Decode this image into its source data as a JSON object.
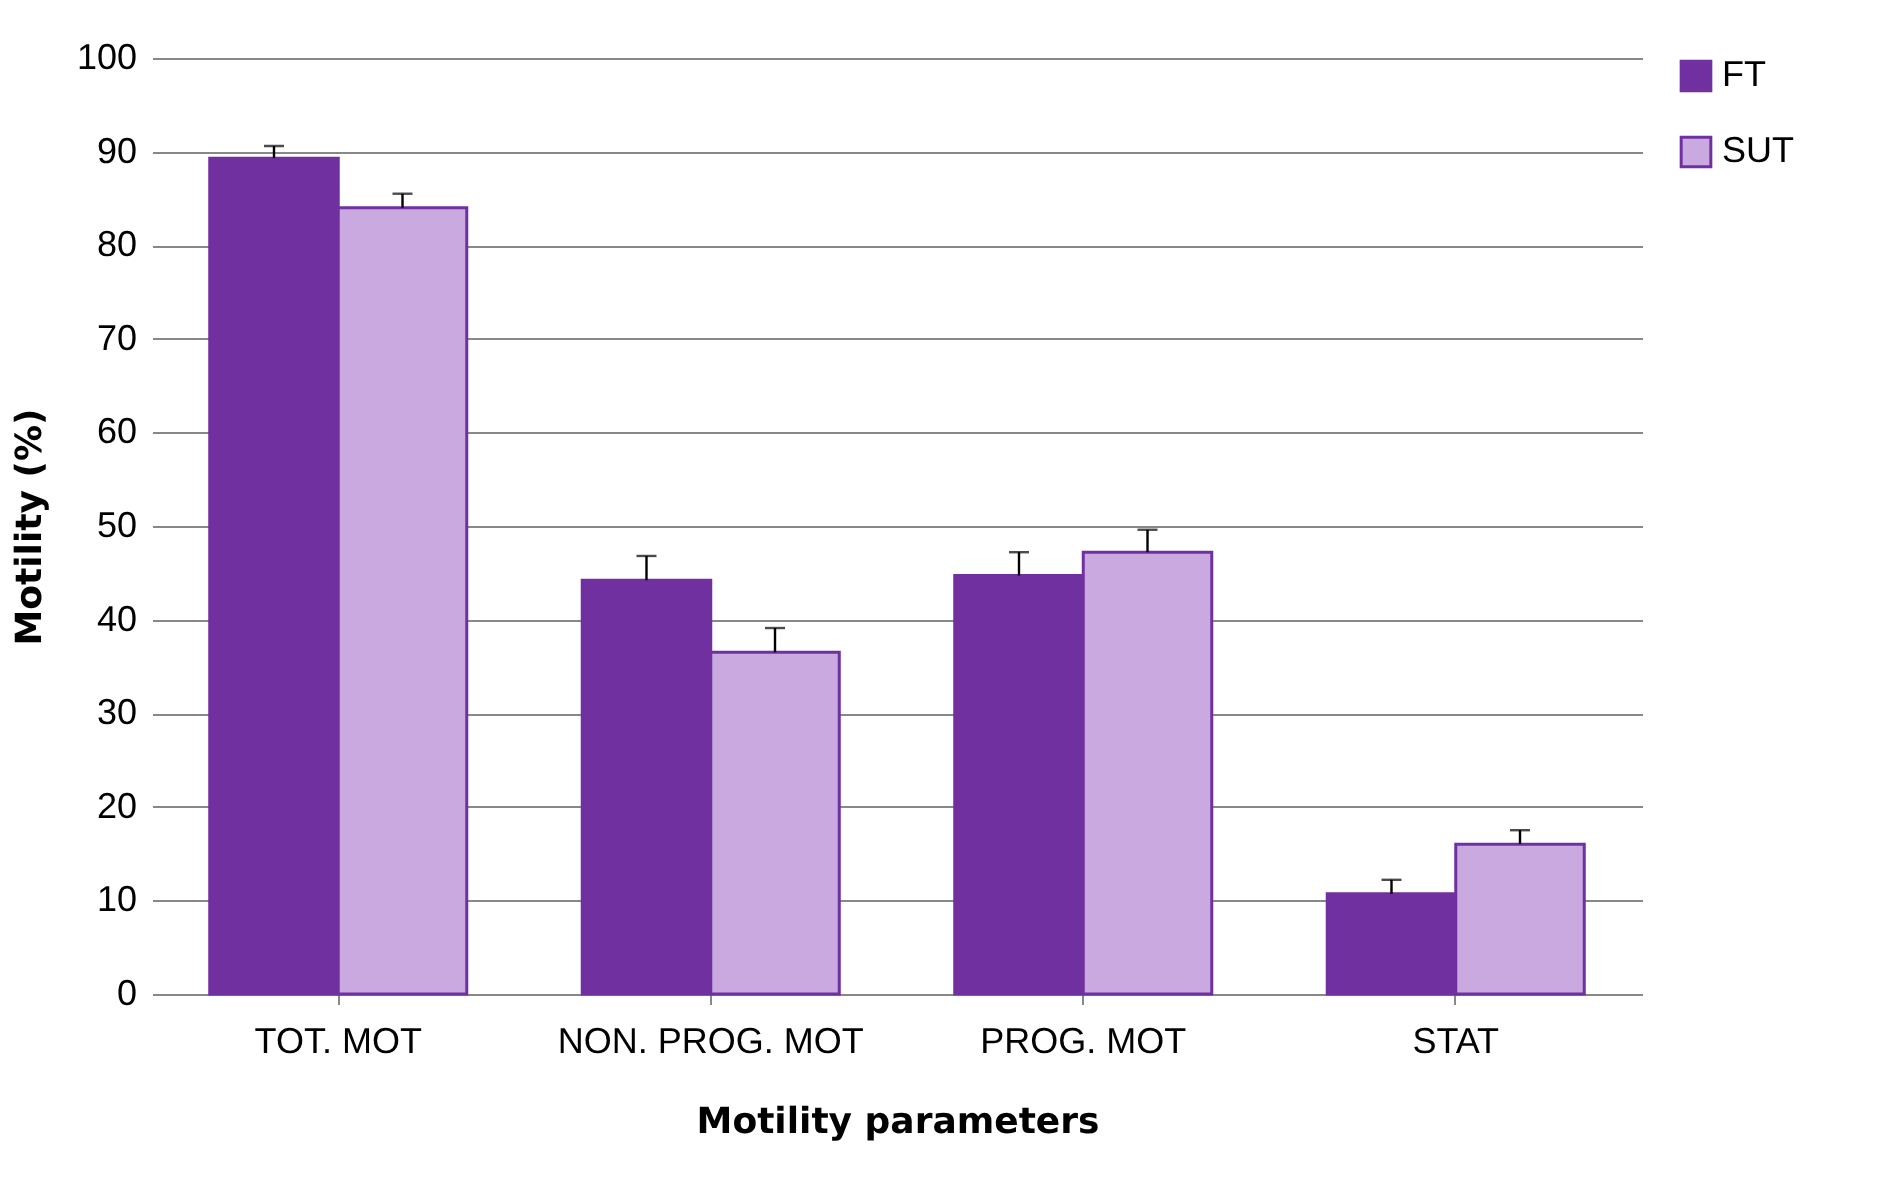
{
  "chart_data": {
    "type": "bar",
    "xlabel": "Motility parameters",
    "ylabel": "Motility (%)",
    "categories": [
      "TOT. MOT",
      "NON. PROG. MOT",
      "PROG. MOT",
      "STAT"
    ],
    "series": [
      {
        "name": "FT",
        "color": "#7030a0",
        "values": [
          89.3,
          44.2,
          44.7,
          10.7
        ],
        "errors": [
          [
            89.3,
            90.6
          ],
          [
            44.2,
            46.8
          ],
          [
            44.7,
            47.2
          ],
          [
            10.7,
            12.2
          ]
        ]
      },
      {
        "name": "SUT",
        "color": "#c9a9e0",
        "values": [
          84.0,
          36.5,
          47.2,
          16.0
        ],
        "errors": [
          [
            84.0,
            85.5
          ],
          [
            36.5,
            39.1
          ],
          [
            47.2,
            49.6
          ],
          [
            16.0,
            17.5
          ]
        ]
      }
    ],
    "ylim": [
      0,
      100
    ],
    "yticks": [
      0,
      10,
      20,
      30,
      40,
      50,
      60,
      70,
      80,
      90,
      100
    ],
    "grid": "y",
    "legend": "right"
  }
}
